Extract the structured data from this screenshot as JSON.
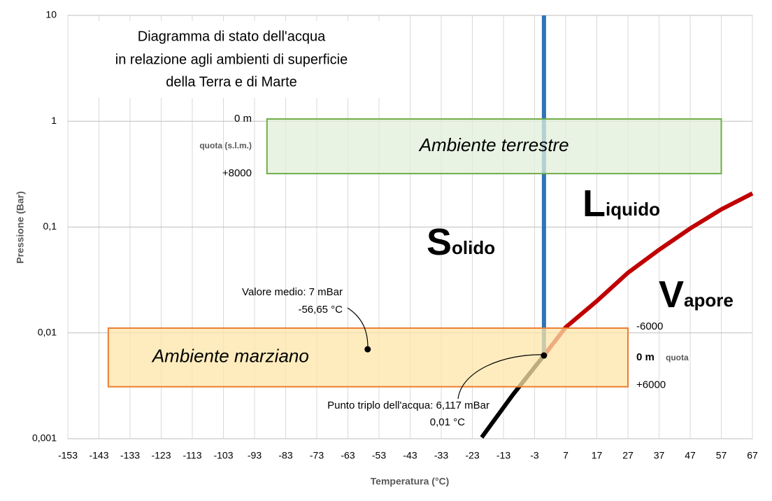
{
  "chart_data": {
    "type": "line",
    "title": [
      "Diagramma di stato dell'acqua",
      "in relazione agli ambienti di superficie",
      "della Terra e di Marte"
    ],
    "x_label": "Temperatura (°C)",
    "y_label": "Pressione (Bar)",
    "xlim": [
      -153,
      67
    ],
    "xticks": [
      -153,
      -143,
      -133,
      -123,
      -113,
      -103,
      -93,
      -83,
      -73,
      -63,
      -53,
      -43,
      -33,
      -23,
      -13,
      -3,
      7,
      17,
      27,
      37,
      47,
      57,
      67
    ],
    "ylim": [
      0.001,
      10
    ],
    "yticks": [
      {
        "value": 0.001,
        "label": "0,001"
      },
      {
        "value": 0.01,
        "label": "0,01"
      },
      {
        "value": 0.1,
        "label": "0,1"
      },
      1,
      10
    ],
    "log_y": true,
    "grid": true,
    "series": [
      {
        "color": "#000000",
        "x": [
          -20,
          -10,
          0.01
        ],
        "values": [
          0.00103,
          0.0026,
          0.006117
        ]
      },
      {
        "color": "#c00000",
        "x": [
          0.01,
          7,
          17,
          27,
          37,
          47,
          57,
          67
        ],
        "values": [
          0.006117,
          0.0113,
          0.02,
          0.037,
          0.061,
          0.097,
          0.147,
          0.208
        ]
      },
      {
        "color": "#2e75b6",
        "x": [
          0.01,
          0.01
        ],
        "values": [
          0.006117,
          10
        ]
      }
    ],
    "regions": [
      {
        "label": "Ambiente terrestre",
        "x": [
          -89,
          57
        ],
        "y": [
          0.32,
          1.05
        ],
        "color": "#70ad47",
        "fill": "#e2efda",
        "text_color": "#375623",
        "side_labels": [
          "0 m",
          "quota (s.l.m.)",
          "+8000"
        ]
      },
      {
        "label": "Ambiente marziano",
        "x": [
          -140,
          27
        ],
        "y": [
          0.0031,
          0.0111
        ],
        "color": "#ed7d31",
        "fill": "#fde6a8",
        "text_color": "#c00000",
        "side_labels": [
          "-6000",
          "0 m",
          "quota",
          "+6000"
        ]
      }
    ],
    "phases": [
      "Solido",
      "Liquido",
      "Vapore"
    ],
    "points": [
      {
        "x": -56.65,
        "y": 0.007,
        "label": [
          "Valore medio:  7 mBar",
          "-56,65 °C"
        ]
      },
      {
        "x": 0.01,
        "y": 0.006117,
        "label": [
          "Punto triplo dell'acqua:  6,117 mBar",
          "0,01 °C"
        ]
      }
    ]
  }
}
